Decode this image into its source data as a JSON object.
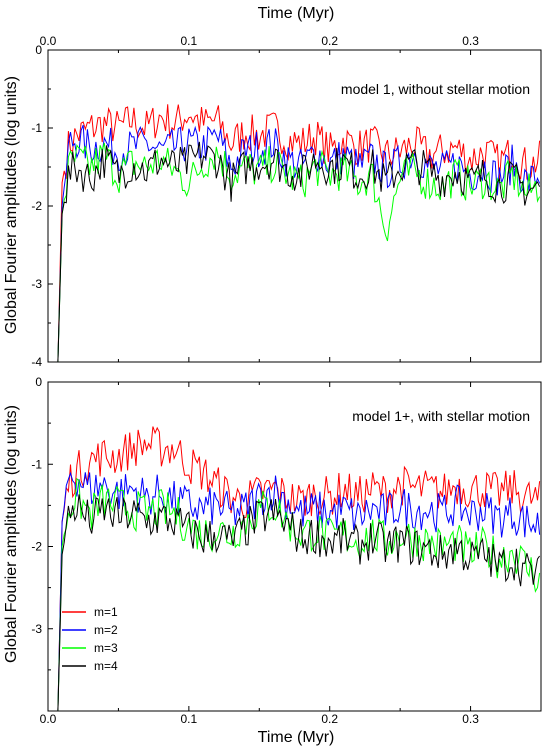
{
  "chart_data": {
    "type": "line",
    "shared_x_axis": {
      "top_label": "Time (Myr)",
      "bottom_label": "Time (Myr)",
      "top_ticks": [
        "0.0",
        "0.1",
        "0.2",
        "0.3"
      ],
      "bottom_ticks": [
        "0.0",
        "0.1",
        "0.2",
        "0.3"
      ],
      "xlim": [
        0.0,
        0.35
      ]
    },
    "ylabel": "Global Fourier amplitudes (log units)",
    "legend": {
      "placement": "bottom-left of lower panel",
      "entries": [
        {
          "label": "m=1",
          "color": "#ff0000"
        },
        {
          "label": "m=2",
          "color": "#0000ff"
        },
        {
          "label": "m=3",
          "color": "#00ff00"
        },
        {
          "label": "m=4",
          "color": "#000000"
        }
      ]
    },
    "panels": [
      {
        "annotation": "model 1, without stellar motion",
        "ylim": [
          -4,
          0
        ],
        "y_ticks": [
          "0",
          "-1",
          "-2",
          "-3",
          "-4"
        ],
        "grid": false,
        "series": [
          {
            "name": "m=1",
            "color": "#ff0000",
            "x": [
              0.007,
              0.01,
              0.015,
              0.02,
              0.03,
              0.04,
              0.05,
              0.06,
              0.07,
              0.08,
              0.09,
              0.1,
              0.11,
              0.12,
              0.13,
              0.14,
              0.15,
              0.16,
              0.17,
              0.18,
              0.19,
              0.2,
              0.21,
              0.22,
              0.23,
              0.24,
              0.25,
              0.26,
              0.27,
              0.28,
              0.29,
              0.3,
              0.31,
              0.32,
              0.33,
              0.34,
              0.35
            ],
            "y": [
              -4.0,
              -1.7,
              -1.2,
              -1.1,
              -1.0,
              -0.95,
              -1.0,
              -0.9,
              -1.0,
              -0.85,
              -0.95,
              -0.8,
              -0.95,
              -0.9,
              -1.2,
              -1.05,
              -1.1,
              -1.0,
              -1.15,
              -1.2,
              -1.1,
              -1.3,
              -1.15,
              -1.25,
              -1.2,
              -1.35,
              -1.3,
              -1.2,
              -1.35,
              -1.3,
              -1.25,
              -1.4,
              -1.3,
              -1.45,
              -1.3,
              -1.5,
              -1.4
            ]
          },
          {
            "name": "m=2",
            "color": "#0000ff",
            "x": [
              0.007,
              0.01,
              0.015,
              0.02,
              0.03,
              0.04,
              0.05,
              0.06,
              0.07,
              0.08,
              0.09,
              0.1,
              0.11,
              0.12,
              0.13,
              0.14,
              0.15,
              0.16,
              0.17,
              0.18,
              0.19,
              0.2,
              0.21,
              0.22,
              0.23,
              0.24,
              0.25,
              0.26,
              0.27,
              0.28,
              0.29,
              0.3,
              0.31,
              0.32,
              0.33,
              0.34,
              0.35
            ],
            "y": [
              -4.0,
              -2.0,
              -1.2,
              -1.15,
              -1.25,
              -1.2,
              -1.3,
              -1.25,
              -1.2,
              -1.3,
              -1.25,
              -1.2,
              -1.25,
              -1.1,
              -1.5,
              -1.3,
              -1.25,
              -1.2,
              -1.4,
              -1.5,
              -1.3,
              -1.45,
              -1.35,
              -1.5,
              -1.4,
              -1.55,
              -1.45,
              -1.3,
              -1.5,
              -1.55,
              -1.45,
              -1.6,
              -1.5,
              -1.65,
              -1.45,
              -1.7,
              -1.6
            ]
          },
          {
            "name": "m=3",
            "color": "#00ff00",
            "x": [
              0.007,
              0.01,
              0.015,
              0.02,
              0.03,
              0.04,
              0.05,
              0.06,
              0.07,
              0.08,
              0.09,
              0.1,
              0.11,
              0.12,
              0.13,
              0.14,
              0.15,
              0.16,
              0.17,
              0.18,
              0.19,
              0.2,
              0.21,
              0.22,
              0.23,
              0.24,
              0.25,
              0.26,
              0.27,
              0.28,
              0.29,
              0.3,
              0.31,
              0.32,
              0.33,
              0.34,
              0.35
            ],
            "y": [
              -4.0,
              -2.1,
              -1.5,
              -1.4,
              -1.5,
              -1.35,
              -1.6,
              -1.45,
              -1.5,
              -1.4,
              -1.55,
              -1.7,
              -1.45,
              -1.3,
              -1.6,
              -1.5,
              -1.55,
              -1.45,
              -1.6,
              -1.7,
              -1.5,
              -1.6,
              -1.55,
              -1.7,
              -1.6,
              -2.3,
              -1.65,
              -1.55,
              -1.7,
              -1.75,
              -1.6,
              -1.75,
              -1.65,
              -1.8,
              -1.6,
              -1.85,
              -1.7
            ]
          },
          {
            "name": "m=4",
            "color": "#000000",
            "x": [
              0.007,
              0.01,
              0.015,
              0.02,
              0.03,
              0.04,
              0.05,
              0.06,
              0.07,
              0.08,
              0.09,
              0.1,
              0.11,
              0.12,
              0.13,
              0.14,
              0.15,
              0.16,
              0.17,
              0.18,
              0.19,
              0.2,
              0.21,
              0.22,
              0.23,
              0.24,
              0.25,
              0.26,
              0.27,
              0.28,
              0.29,
              0.3,
              0.31,
              0.32,
              0.33,
              0.34,
              0.35
            ],
            "y": [
              -4.0,
              -2.1,
              -1.6,
              -1.5,
              -1.65,
              -1.4,
              -1.6,
              -1.45,
              -1.55,
              -1.4,
              -1.5,
              -1.45,
              -1.35,
              -1.4,
              -1.7,
              -1.5,
              -1.45,
              -1.4,
              -1.55,
              -1.6,
              -1.4,
              -1.5,
              -1.45,
              -1.6,
              -1.5,
              -1.7,
              -1.5,
              -1.45,
              -1.55,
              -1.65,
              -1.55,
              -1.7,
              -1.6,
              -1.75,
              -1.65,
              -1.8,
              -1.75
            ]
          }
        ]
      },
      {
        "annotation": "model 1+, with stellar motion",
        "ylim": [
          -4,
          0
        ],
        "y_ticks": [
          "0",
          "-1",
          "-2",
          "-3"
        ],
        "grid": false,
        "series": [
          {
            "name": "m=1",
            "color": "#ff0000",
            "x": [
              0.007,
              0.01,
              0.015,
              0.02,
              0.03,
              0.04,
              0.05,
              0.06,
              0.07,
              0.08,
              0.09,
              0.1,
              0.11,
              0.12,
              0.13,
              0.14,
              0.15,
              0.16,
              0.17,
              0.18,
              0.19,
              0.2,
              0.21,
              0.22,
              0.23,
              0.24,
              0.25,
              0.26,
              0.27,
              0.28,
              0.29,
              0.3,
              0.31,
              0.32,
              0.33,
              0.34,
              0.35
            ],
            "y": [
              -4.0,
              -1.7,
              -1.2,
              -1.1,
              -0.95,
              -0.9,
              -0.9,
              -0.8,
              -0.75,
              -0.8,
              -0.8,
              -1.0,
              -1.1,
              -1.25,
              -1.4,
              -1.45,
              -1.35,
              -1.3,
              -1.4,
              -1.45,
              -1.35,
              -1.4,
              -1.3,
              -1.4,
              -1.3,
              -1.35,
              -1.25,
              -1.3,
              -1.3,
              -1.35,
              -1.25,
              -1.3,
              -1.3,
              -1.35,
              -1.3,
              -1.4,
              -1.45
            ]
          },
          {
            "name": "m=2",
            "color": "#0000ff",
            "x": [
              0.007,
              0.01,
              0.015,
              0.02,
              0.03,
              0.04,
              0.05,
              0.06,
              0.07,
              0.08,
              0.09,
              0.1,
              0.11,
              0.12,
              0.13,
              0.14,
              0.15,
              0.16,
              0.17,
              0.18,
              0.19,
              0.2,
              0.21,
              0.22,
              0.23,
              0.24,
              0.25,
              0.26,
              0.27,
              0.28,
              0.29,
              0.3,
              0.31,
              0.32,
              0.33,
              0.34,
              0.35
            ],
            "y": [
              -4.0,
              -1.7,
              -1.1,
              -1.15,
              -1.3,
              -1.25,
              -1.35,
              -1.3,
              -1.4,
              -1.35,
              -1.45,
              -1.5,
              -1.55,
              -1.5,
              -1.6,
              -1.55,
              -1.4,
              -1.3,
              -1.45,
              -1.6,
              -1.55,
              -1.6,
              -1.55,
              -1.65,
              -1.55,
              -1.6,
              -1.5,
              -1.55,
              -1.55,
              -1.6,
              -1.5,
              -1.6,
              -1.55,
              -1.65,
              -1.6,
              -1.7,
              -1.75
            ]
          },
          {
            "name": "m=3",
            "color": "#00ff00",
            "x": [
              0.007,
              0.01,
              0.015,
              0.02,
              0.03,
              0.04,
              0.05,
              0.06,
              0.07,
              0.08,
              0.09,
              0.1,
              0.11,
              0.12,
              0.13,
              0.14,
              0.15,
              0.16,
              0.17,
              0.18,
              0.19,
              0.2,
              0.21,
              0.22,
              0.23,
              0.24,
              0.25,
              0.26,
              0.27,
              0.28,
              0.29,
              0.3,
              0.31,
              0.32,
              0.33,
              0.34,
              0.35
            ],
            "y": [
              -4.0,
              -2.0,
              -1.5,
              -1.4,
              -1.6,
              -1.45,
              -1.5,
              -1.55,
              -1.6,
              -1.55,
              -1.6,
              -1.75,
              -1.85,
              -1.8,
              -1.85,
              -1.7,
              -1.55,
              -1.5,
              -1.7,
              -1.85,
              -1.8,
              -1.9,
              -1.85,
              -1.95,
              -1.85,
              -1.95,
              -1.85,
              -1.9,
              -1.95,
              -2.0,
              -1.95,
              -2.1,
              -2.0,
              -2.15,
              -2.05,
              -2.25,
              -2.4
            ]
          },
          {
            "name": "m=4",
            "color": "#000000",
            "x": [
              0.007,
              0.01,
              0.015,
              0.02,
              0.03,
              0.04,
              0.05,
              0.06,
              0.07,
              0.08,
              0.09,
              0.1,
              0.11,
              0.12,
              0.13,
              0.14,
              0.15,
              0.16,
              0.17,
              0.18,
              0.19,
              0.2,
              0.21,
              0.22,
              0.23,
              0.24,
              0.25,
              0.26,
              0.27,
              0.28,
              0.29,
              0.3,
              0.31,
              0.32,
              0.33,
              0.34,
              0.35
            ],
            "y": [
              -4.0,
              -2.1,
              -1.6,
              -1.5,
              -1.7,
              -1.55,
              -1.65,
              -1.6,
              -1.7,
              -1.65,
              -1.7,
              -1.8,
              -1.9,
              -1.85,
              -1.95,
              -1.8,
              -1.65,
              -1.6,
              -1.75,
              -1.9,
              -1.85,
              -1.95,
              -1.9,
              -2.0,
              -1.9,
              -2.0,
              -1.95,
              -2.0,
              -2.05,
              -2.1,
              -2.0,
              -2.15,
              -2.1,
              -2.25,
              -2.15,
              -2.3,
              -2.35
            ]
          }
        ]
      }
    ]
  }
}
